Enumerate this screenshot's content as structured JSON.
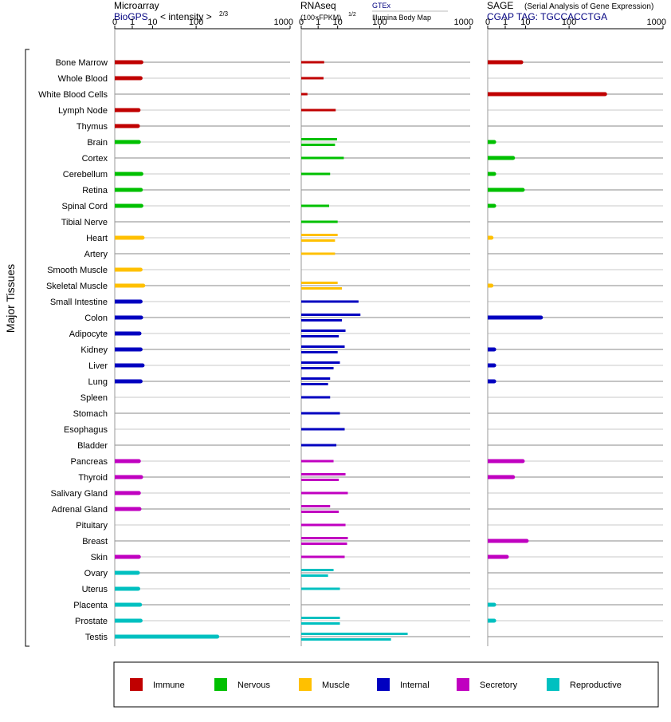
{
  "panels": {
    "microarray": {
      "title": "Microarray",
      "source": "BioGPS",
      "unit_prefix": "< intensity >",
      "unit_exponent": "2/3"
    },
    "rnaseq": {
      "title": "RNAseq",
      "source_top": "GTEx",
      "source_bottom": "Illumina Body Map",
      "unit_base": "(100×FPKM)",
      "unit_exponent": "1/2"
    },
    "sage": {
      "title": "SAGE",
      "subtitle": "(Serial Analysis of Gene Expression)",
      "tag_line": "CGAP TAG: TGCCACCTGA"
    }
  },
  "colors": {
    "Immune": "#c00000",
    "Nervous": "#00c000",
    "Muscle": "#ffc000",
    "Internal": "#0000c0",
    "Secretory": "#c000c0",
    "Reproductive": "#00c0c0"
  },
  "chart_data": {
    "type": "bar",
    "orientation": "horizontal",
    "ylabel": "Major Tissues",
    "x_ticks": [
      "0",
      "1",
      "10",
      "100",
      "1000"
    ],
    "x_scale": "power 1/3 (0 to 1000)",
    "categories": [
      "Bone Marrow",
      "Whole Blood",
      "White Blood Cells",
      "Lymph Node",
      "Thymus",
      "Brain",
      "Cortex",
      "Cerebellum",
      "Retina",
      "Spinal Cord",
      "Tibial Nerve",
      "Heart",
      "Artery",
      "Smooth Muscle",
      "Skeletal Muscle",
      "Small Intestine",
      "Colon",
      "Adipocyte",
      "Kidney",
      "Liver",
      "Lung",
      "Spleen",
      "Stomach",
      "Esophagus",
      "Bladder",
      "Pancreas",
      "Thyroid",
      "Salivary Gland",
      "Adrenal Gland",
      "Pituitary",
      "Breast",
      "Skin",
      "Ovary",
      "Uterus",
      "Placenta",
      "Prostate",
      "Testis"
    ],
    "groups": [
      "Immune",
      "Immune",
      "Immune",
      "Immune",
      "Immune",
      "Nervous",
      "Nervous",
      "Nervous",
      "Nervous",
      "Nervous",
      "Nervous",
      "Muscle",
      "Muscle",
      "Muscle",
      "Muscle",
      "Internal",
      "Internal",
      "Internal",
      "Internal",
      "Internal",
      "Internal",
      "Internal",
      "Internal",
      "Internal",
      "Internal",
      "Secretory",
      "Secretory",
      "Secretory",
      "Secretory",
      "Secretory",
      "Secretory",
      "Secretory",
      "Reproductive",
      "Reproductive",
      "Reproductive",
      "Reproductive",
      "Reproductive"
    ],
    "series": [
      {
        "panel": "microarray",
        "values": [
          3.5,
          3.2,
          null,
          2.5,
          2.3,
          2.6,
          null,
          3.5,
          3.3,
          3.5,
          null,
          4,
          null,
          3.2,
          4.3,
          3.2,
          3.4,
          2.8,
          3.2,
          4,
          3.2,
          null,
          null,
          null,
          null,
          2.6,
          3.4,
          2.6,
          2.8,
          null,
          null,
          2.6,
          2.3,
          2.4,
          3,
          3.2,
          200
        ]
      },
      {
        "panel": "rnaseq",
        "rows": [
          [
            2.5
          ],
          [
            2.3
          ],
          [
            0.05
          ],
          [
            8.5
          ],
          [],
          [
            9.5,
            8
          ],
          [
            16
          ],
          [
            5
          ],
          [],
          [
            4.5
          ],
          [
            10
          ],
          [
            10,
            8
          ],
          [
            8
          ],
          [],
          [
            10,
            14
          ],
          [
            39
          ],
          [
            43,
            14
          ],
          [
            18,
            11
          ],
          [
            17,
            10
          ],
          [
            12,
            7
          ],
          [
            5,
            4
          ],
          [
            5
          ],
          [
            12
          ],
          [
            17
          ],
          [
            9
          ],
          [
            7
          ],
          [
            18,
            11
          ],
          [
            21
          ],
          [
            5,
            11
          ],
          [
            18
          ],
          [
            21,
            20
          ],
          [
            17
          ],
          [
            7,
            4
          ],
          [
            12
          ],
          [],
          [
            12,
            12
          ],
          [
            250,
            150
          ]
        ]
      },
      {
        "panel": "sage",
        "values": [
          7,
          null,
          300,
          null,
          null,
          0.05,
          3,
          0.05,
          8,
          0.05,
          null,
          0.01,
          null,
          null,
          0.01,
          null,
          28,
          null,
          0.05,
          0.05,
          0.05,
          null,
          null,
          null,
          null,
          8,
          3,
          null,
          null,
          null,
          11,
          1.3,
          null,
          null,
          0.05,
          0.05,
          null
        ]
      }
    ]
  },
  "legend": [
    {
      "label": "Immune",
      "color": "#c00000"
    },
    {
      "label": "Nervous",
      "color": "#00c000"
    },
    {
      "label": "Muscle",
      "color": "#ffc000"
    },
    {
      "label": "Internal",
      "color": "#0000c0"
    },
    {
      "label": "Secretory",
      "color": "#c000c0"
    },
    {
      "label": "Reproductive",
      "color": "#00c0c0"
    }
  ]
}
